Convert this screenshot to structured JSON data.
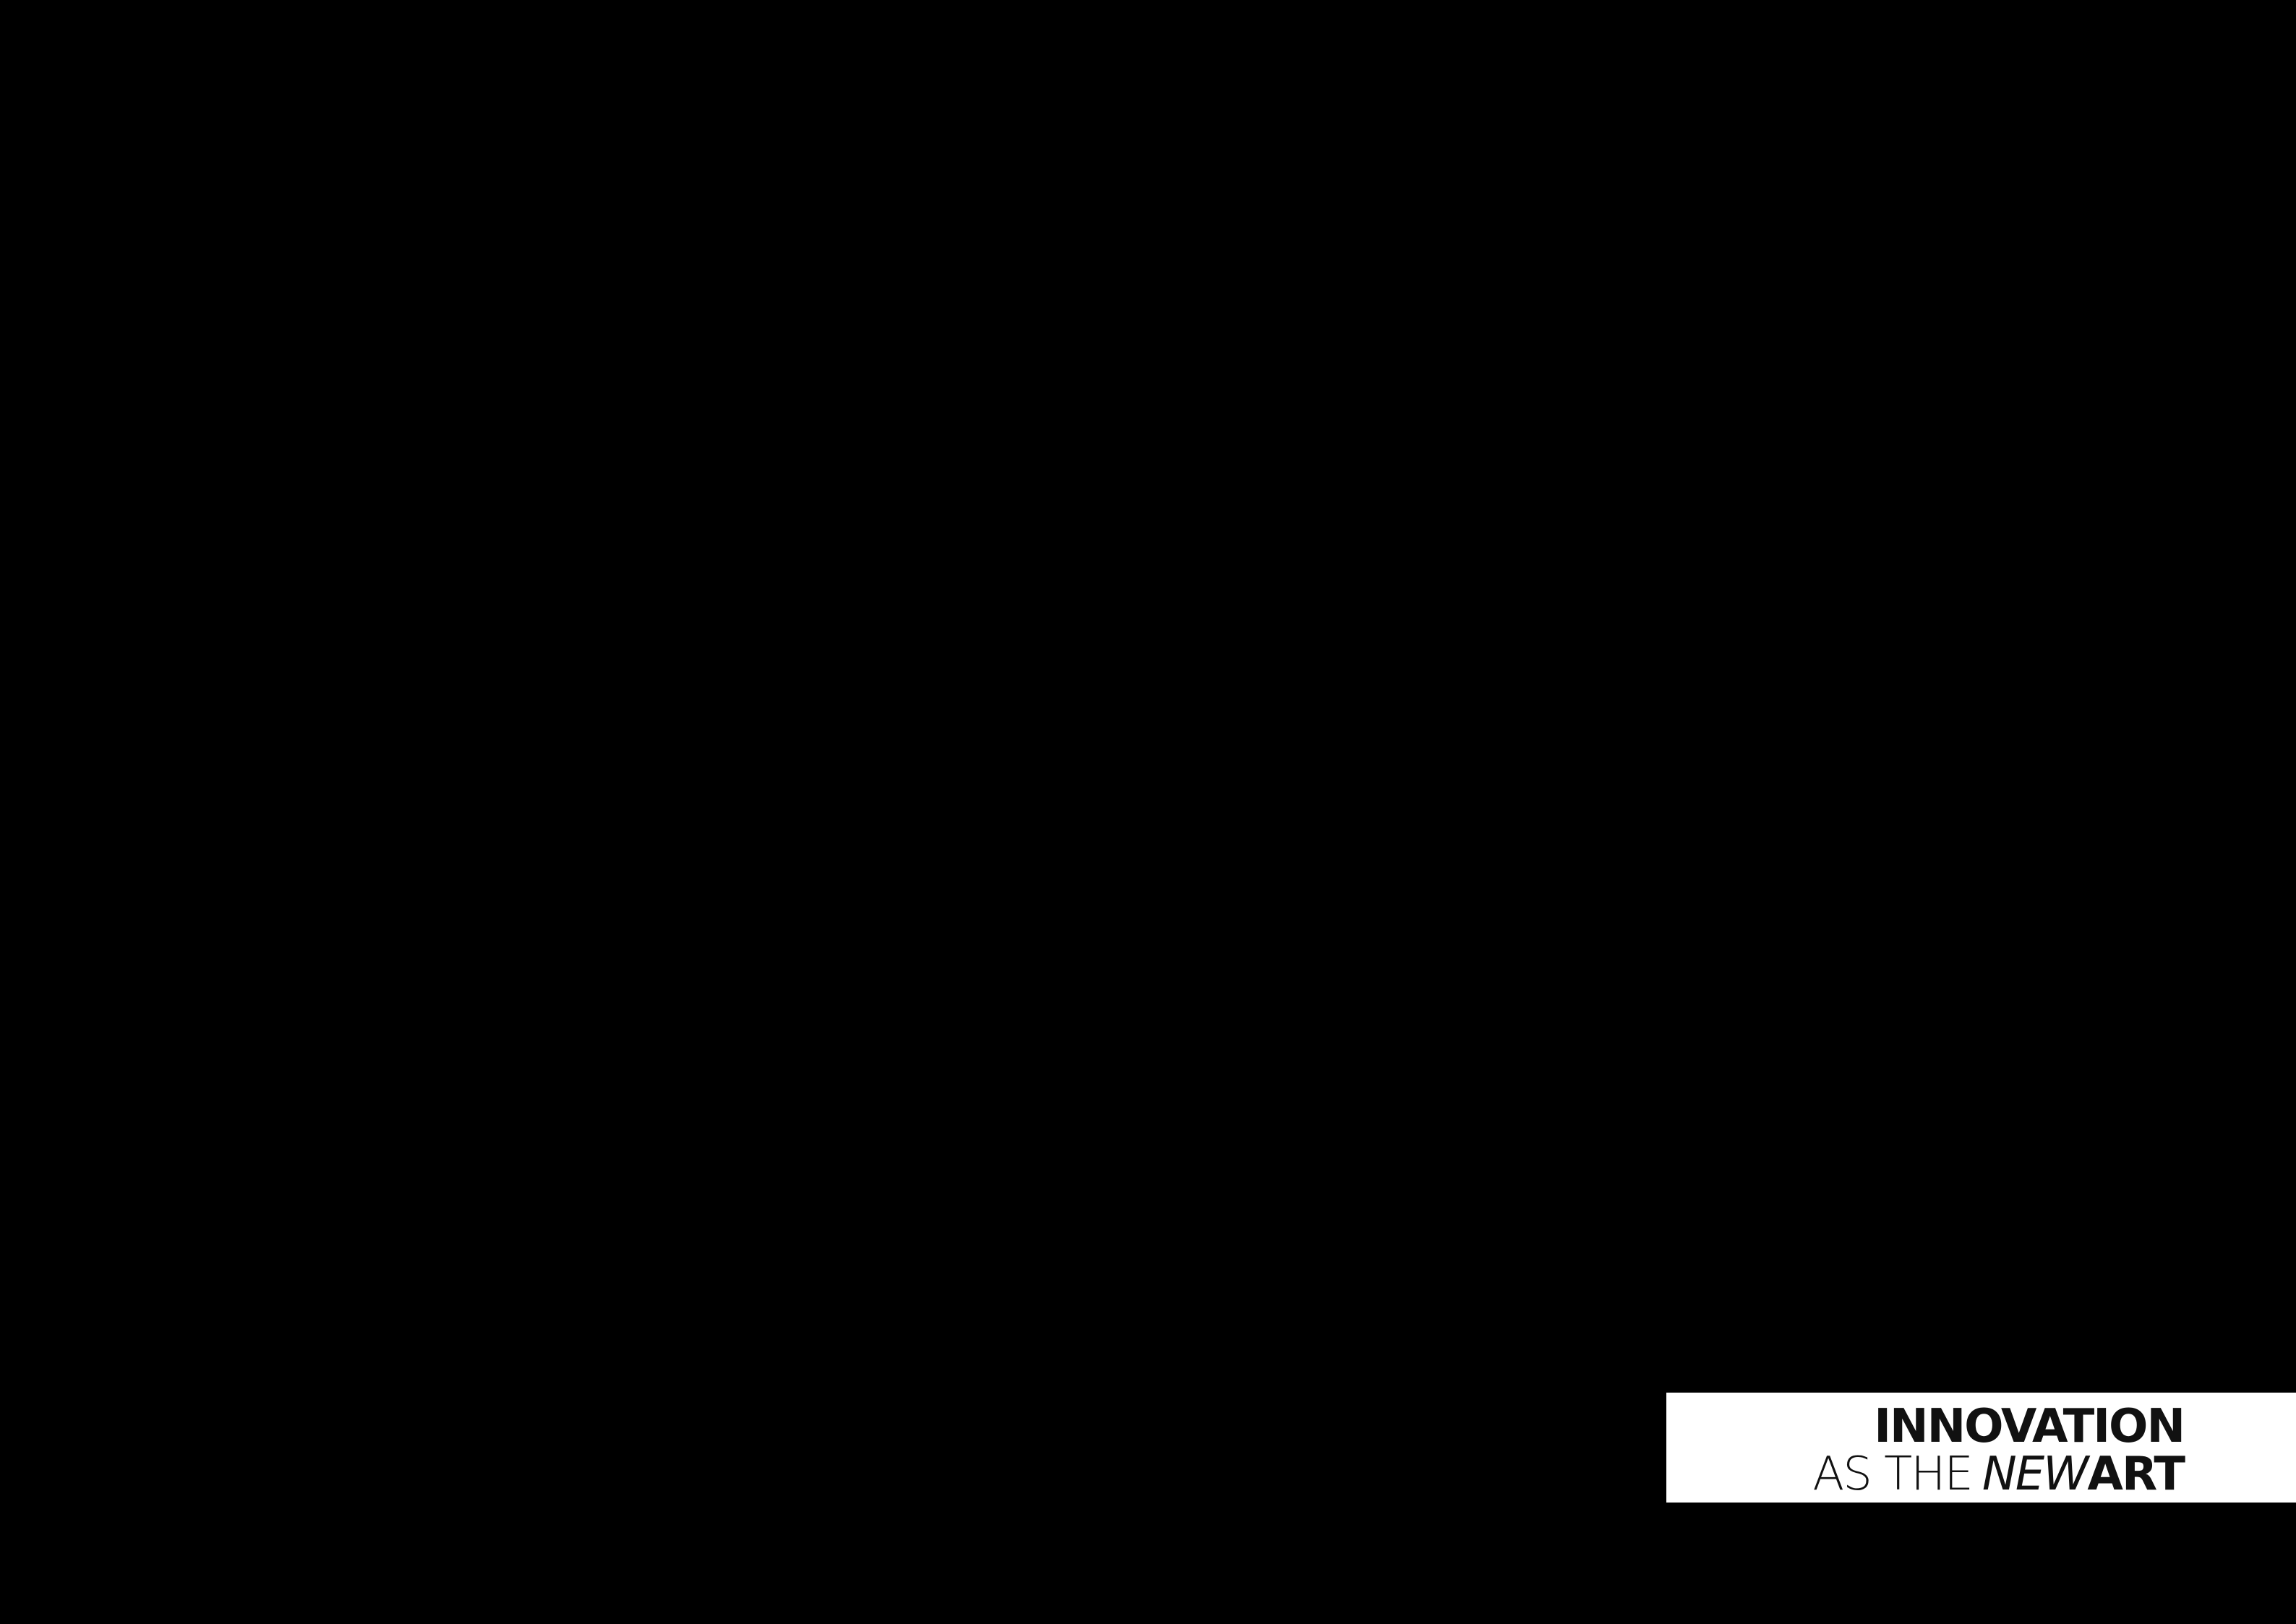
{
  "title": {
    "line1": "INNOVATION",
    "line2": [
      "AS THE",
      "NEW",
      "ART"
    ]
  }
}
